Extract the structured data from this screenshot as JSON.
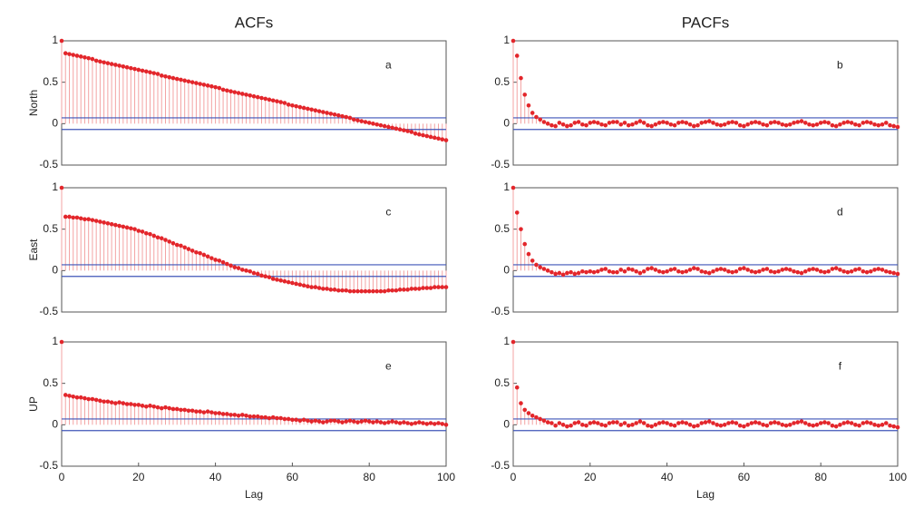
{
  "column_titles": [
    "ACFs",
    "PACFs"
  ],
  "chart_data": [
    {
      "type": "stem",
      "ylabel": "North",
      "annotation": "a",
      "xlim": [
        0,
        100
      ],
      "ylim": [
        -0.5,
        1
      ],
      "yticks": [
        -0.5,
        0,
        0.5,
        1
      ],
      "confidence_bounds": [
        -0.07,
        0.07
      ],
      "color": "#e3262b",
      "stem_color": "#f3a3a3",
      "bound_color": "#3f54b8",
      "x": [
        0,
        1,
        2,
        3,
        4,
        5,
        6,
        7,
        8,
        9,
        10,
        11,
        12,
        13,
        14,
        15,
        16,
        17,
        18,
        19,
        20,
        21,
        22,
        23,
        24,
        25,
        26,
        27,
        28,
        29,
        30,
        31,
        32,
        33,
        34,
        35,
        36,
        37,
        38,
        39,
        40,
        41,
        42,
        43,
        44,
        45,
        46,
        47,
        48,
        49,
        50,
        51,
        52,
        53,
        54,
        55,
        56,
        57,
        58,
        59,
        60,
        61,
        62,
        63,
        64,
        65,
        66,
        67,
        68,
        69,
        70,
        71,
        72,
        73,
        74,
        75,
        76,
        77,
        78,
        79,
        80,
        81,
        82,
        83,
        84,
        85,
        86,
        87,
        88,
        89,
        90,
        91,
        92,
        93,
        94,
        95,
        96,
        97,
        98,
        99,
        100
      ],
      "values": [
        1,
        0.85,
        0.84,
        0.83,
        0.82,
        0.81,
        0.8,
        0.79,
        0.78,
        0.76,
        0.75,
        0.74,
        0.73,
        0.72,
        0.71,
        0.7,
        0.69,
        0.68,
        0.67,
        0.66,
        0.65,
        0.64,
        0.63,
        0.62,
        0.61,
        0.6,
        0.58,
        0.57,
        0.56,
        0.55,
        0.54,
        0.53,
        0.52,
        0.51,
        0.5,
        0.49,
        0.48,
        0.47,
        0.46,
        0.45,
        0.44,
        0.43,
        0.41,
        0.4,
        0.39,
        0.38,
        0.37,
        0.36,
        0.35,
        0.34,
        0.33,
        0.32,
        0.31,
        0.3,
        0.29,
        0.28,
        0.27,
        0.26,
        0.25,
        0.23,
        0.22,
        0.21,
        0.2,
        0.19,
        0.18,
        0.17,
        0.16,
        0.15,
        0.14,
        0.13,
        0.12,
        0.11,
        0.1,
        0.09,
        0.08,
        0.07,
        0.05,
        0.04,
        0.03,
        0.02,
        0.01,
        0,
        -0.01,
        -0.02,
        -0.03,
        -0.04,
        -0.05,
        -0.06,
        -0.07,
        -0.08,
        -0.09,
        -0.1,
        -0.12,
        -0.13,
        -0.14,
        -0.15,
        -0.16,
        -0.17,
        -0.18,
        -0.19,
        -0.2
      ]
    },
    {
      "type": "stem",
      "annotation": "b",
      "xlim": [
        0,
        100
      ],
      "ylim": [
        -0.5,
        1
      ],
      "yticks": [
        -0.5,
        0,
        0.5,
        1
      ],
      "confidence_bounds": [
        -0.07,
        0.07
      ],
      "color": "#e3262b",
      "stem_color": "#f3a3a3",
      "bound_color": "#3f54b8",
      "x": [
        0,
        1,
        2,
        3,
        4,
        5,
        6,
        7,
        8,
        9,
        10,
        11,
        12,
        13,
        14,
        15,
        16,
        17,
        18,
        19,
        20,
        21,
        22,
        23,
        24,
        25,
        26,
        27,
        28,
        29,
        30,
        31,
        32,
        33,
        34,
        35,
        36,
        37,
        38,
        39,
        40,
        41,
        42,
        43,
        44,
        45,
        46,
        47,
        48,
        49,
        50,
        51,
        52,
        53,
        54,
        55,
        56,
        57,
        58,
        59,
        60,
        61,
        62,
        63,
        64,
        65,
        66,
        67,
        68,
        69,
        70,
        71,
        72,
        73,
        74,
        75,
        76,
        77,
        78,
        79,
        80,
        81,
        82,
        83,
        84,
        85,
        86,
        87,
        88,
        89,
        90,
        91,
        92,
        93,
        94,
        95,
        96,
        97,
        98,
        99,
        100
      ],
      "values": [
        1,
        0.82,
        0.55,
        0.35,
        0.22,
        0.13,
        0.08,
        0.05,
        0.02,
        0,
        -0.02,
        -0.03,
        0.01,
        -0.01,
        -0.03,
        -0.02,
        0.01,
        0.02,
        -0.01,
        -0.02,
        0.01,
        0.02,
        0.01,
        -0.01,
        -0.02,
        0.01,
        0.02,
        0.02,
        -0.01,
        0.01,
        -0.02,
        -0.01,
        0.01,
        0.03,
        0.01,
        -0.02,
        -0.03,
        -0.01,
        0.01,
        0.02,
        0.01,
        -0.01,
        -0.02,
        0.01,
        0.02,
        0.01,
        -0.01,
        -0.03,
        -0.02,
        0.01,
        0.02,
        0.03,
        0.01,
        -0.01,
        -0.02,
        -0.01,
        0.01,
        0.02,
        0.01,
        -0.02,
        -0.03,
        -0.01,
        0.01,
        0.02,
        0.01,
        -0.01,
        -0.02,
        0.01,
        0.02,
        0.01,
        -0.01,
        -0.02,
        -0.01,
        0.01,
        0.02,
        0.03,
        0.01,
        -0.01,
        -0.02,
        -0.01,
        0.01,
        0.02,
        0.01,
        -0.02,
        -0.03,
        -0.01,
        0.01,
        0.02,
        0.01,
        -0.01,
        -0.02,
        0.01,
        0.02,
        0.01,
        -0.01,
        -0.02,
        -0.01,
        0.01,
        -0.02,
        -0.03,
        -0.04
      ]
    },
    {
      "type": "stem",
      "ylabel": "East",
      "annotation": "c",
      "xlim": [
        0,
        100
      ],
      "ylim": [
        -0.5,
        1
      ],
      "yticks": [
        -0.5,
        0,
        0.5,
        1
      ],
      "confidence_bounds": [
        -0.07,
        0.07
      ],
      "color": "#e3262b",
      "stem_color": "#f3a3a3",
      "bound_color": "#3f54b8",
      "x": [
        0,
        1,
        2,
        3,
        4,
        5,
        6,
        7,
        8,
        9,
        10,
        11,
        12,
        13,
        14,
        15,
        16,
        17,
        18,
        19,
        20,
        21,
        22,
        23,
        24,
        25,
        26,
        27,
        28,
        29,
        30,
        31,
        32,
        33,
        34,
        35,
        36,
        37,
        38,
        39,
        40,
        41,
        42,
        43,
        44,
        45,
        46,
        47,
        48,
        49,
        50,
        51,
        52,
        53,
        54,
        55,
        56,
        57,
        58,
        59,
        60,
        61,
        62,
        63,
        64,
        65,
        66,
        67,
        68,
        69,
        70,
        71,
        72,
        73,
        74,
        75,
        76,
        77,
        78,
        79,
        80,
        81,
        82,
        83,
        84,
        85,
        86,
        87,
        88,
        89,
        90,
        91,
        92,
        93,
        94,
        95,
        96,
        97,
        98,
        99,
        100
      ],
      "values": [
        1,
        0.65,
        0.65,
        0.64,
        0.64,
        0.63,
        0.62,
        0.62,
        0.61,
        0.6,
        0.59,
        0.58,
        0.57,
        0.56,
        0.55,
        0.54,
        0.53,
        0.52,
        0.51,
        0.5,
        0.48,
        0.47,
        0.45,
        0.44,
        0.42,
        0.4,
        0.39,
        0.37,
        0.35,
        0.33,
        0.31,
        0.3,
        0.28,
        0.26,
        0.24,
        0.22,
        0.21,
        0.19,
        0.17,
        0.15,
        0.13,
        0.12,
        0.1,
        0.08,
        0.06,
        0.04,
        0.03,
        0.01,
        0,
        -0.01,
        -0.03,
        -0.04,
        -0.06,
        -0.07,
        -0.08,
        -0.1,
        -0.11,
        -0.12,
        -0.13,
        -0.14,
        -0.15,
        -0.16,
        -0.17,
        -0.18,
        -0.19,
        -0.2,
        -0.2,
        -0.21,
        -0.22,
        -0.22,
        -0.23,
        -0.23,
        -0.24,
        -0.24,
        -0.24,
        -0.25,
        -0.25,
        -0.25,
        -0.25,
        -0.25,
        -0.25,
        -0.25,
        -0.25,
        -0.25,
        -0.25,
        -0.24,
        -0.24,
        -0.24,
        -0.23,
        -0.23,
        -0.23,
        -0.22,
        -0.22,
        -0.22,
        -0.21,
        -0.21,
        -0.21,
        -0.2,
        -0.2,
        -0.2,
        -0.2
      ]
    },
    {
      "type": "stem",
      "annotation": "d",
      "xlim": [
        0,
        100
      ],
      "ylim": [
        -0.5,
        1
      ],
      "yticks": [
        -0.5,
        0,
        0.5,
        1
      ],
      "confidence_bounds": [
        -0.07,
        0.07
      ],
      "color": "#e3262b",
      "stem_color": "#f3a3a3",
      "bound_color": "#3f54b8",
      "x": [
        0,
        1,
        2,
        3,
        4,
        5,
        6,
        7,
        8,
        9,
        10,
        11,
        12,
        13,
        14,
        15,
        16,
        17,
        18,
        19,
        20,
        21,
        22,
        23,
        24,
        25,
        26,
        27,
        28,
        29,
        30,
        31,
        32,
        33,
        34,
        35,
        36,
        37,
        38,
        39,
        40,
        41,
        42,
        43,
        44,
        45,
        46,
        47,
        48,
        49,
        50,
        51,
        52,
        53,
        54,
        55,
        56,
        57,
        58,
        59,
        60,
        61,
        62,
        63,
        64,
        65,
        66,
        67,
        68,
        69,
        70,
        71,
        72,
        73,
        74,
        75,
        76,
        77,
        78,
        79,
        80,
        81,
        82,
        83,
        84,
        85,
        86,
        87,
        88,
        89,
        90,
        91,
        92,
        93,
        94,
        95,
        96,
        97,
        98,
        99,
        100
      ],
      "values": [
        1,
        0.7,
        0.5,
        0.32,
        0.2,
        0.12,
        0.07,
        0.04,
        0.02,
        0,
        -0.02,
        -0.04,
        -0.03,
        -0.05,
        -0.03,
        -0.02,
        -0.04,
        -0.03,
        -0.01,
        -0.02,
        -0.01,
        -0.02,
        -0.01,
        0.01,
        0.02,
        -0.01,
        -0.02,
        -0.02,
        0.01,
        -0.01,
        0.02,
        0.01,
        -0.01,
        -0.03,
        -0.01,
        0.02,
        0.03,
        0.01,
        -0.01,
        -0.02,
        -0.01,
        0.01,
        0.02,
        -0.01,
        -0.02,
        -0.01,
        0.01,
        0.03,
        0.02,
        -0.01,
        -0.02,
        -0.03,
        -0.01,
        0.01,
        0.02,
        0.01,
        -0.01,
        -0.02,
        -0.01,
        0.02,
        0.03,
        0.01,
        -0.01,
        -0.02,
        -0.01,
        0.01,
        0.02,
        -0.01,
        -0.02,
        -0.01,
        0.01,
        0.02,
        0.01,
        -0.01,
        -0.02,
        -0.03,
        -0.01,
        0.01,
        0.02,
        0.01,
        -0.01,
        -0.02,
        -0.01,
        0.02,
        0.03,
        0.01,
        -0.01,
        -0.02,
        -0.01,
        0.01,
        0.02,
        -0.01,
        -0.02,
        -0.01,
        0.01,
        0.02,
        0.01,
        -0.01,
        -0.02,
        -0.03,
        -0.04
      ]
    },
    {
      "type": "stem",
      "ylabel": "UP",
      "xlabel": "Lag",
      "annotation": "e",
      "xlim": [
        0,
        100
      ],
      "ylim": [
        -0.5,
        1
      ],
      "xticks": [
        0,
        20,
        40,
        60,
        80,
        100
      ],
      "yticks": [
        -0.5,
        0,
        0.5,
        1
      ],
      "confidence_bounds": [
        -0.07,
        0.07
      ],
      "color": "#e3262b",
      "stem_color": "#f3a3a3",
      "bound_color": "#3f54b8",
      "x": [
        0,
        1,
        2,
        3,
        4,
        5,
        6,
        7,
        8,
        9,
        10,
        11,
        12,
        13,
        14,
        15,
        16,
        17,
        18,
        19,
        20,
        21,
        22,
        23,
        24,
        25,
        26,
        27,
        28,
        29,
        30,
        31,
        32,
        33,
        34,
        35,
        36,
        37,
        38,
        39,
        40,
        41,
        42,
        43,
        44,
        45,
        46,
        47,
        48,
        49,
        50,
        51,
        52,
        53,
        54,
        55,
        56,
        57,
        58,
        59,
        60,
        61,
        62,
        63,
        64,
        65,
        66,
        67,
        68,
        69,
        70,
        71,
        72,
        73,
        74,
        75,
        76,
        77,
        78,
        79,
        80,
        81,
        82,
        83,
        84,
        85,
        86,
        87,
        88,
        89,
        90,
        91,
        92,
        93,
        94,
        95,
        96,
        97,
        98,
        99,
        100
      ],
      "values": [
        1,
        0.36,
        0.35,
        0.34,
        0.33,
        0.33,
        0.32,
        0.31,
        0.31,
        0.3,
        0.29,
        0.28,
        0.28,
        0.27,
        0.26,
        0.27,
        0.26,
        0.25,
        0.25,
        0.24,
        0.24,
        0.23,
        0.22,
        0.23,
        0.22,
        0.21,
        0.2,
        0.21,
        0.2,
        0.19,
        0.19,
        0.18,
        0.18,
        0.17,
        0.17,
        0.16,
        0.16,
        0.15,
        0.16,
        0.15,
        0.14,
        0.14,
        0.13,
        0.13,
        0.12,
        0.12,
        0.11,
        0.12,
        0.11,
        0.1,
        0.1,
        0.1,
        0.09,
        0.09,
        0.08,
        0.09,
        0.08,
        0.08,
        0.07,
        0.07,
        0.06,
        0.06,
        0.05,
        0.06,
        0.05,
        0.04,
        0.05,
        0.04,
        0.03,
        0.04,
        0.05,
        0.05,
        0.04,
        0.03,
        0.04,
        0.05,
        0.04,
        0.03,
        0.04,
        0.05,
        0.04,
        0.03,
        0.04,
        0.03,
        0.02,
        0.03,
        0.04,
        0.03,
        0.02,
        0.03,
        0.02,
        0.01,
        0.02,
        0.03,
        0.02,
        0.01,
        0.02,
        0.01,
        0.02,
        0.01,
        0
      ]
    },
    {
      "type": "stem",
      "xlabel": "Lag",
      "annotation": "f",
      "xlim": [
        0,
        100
      ],
      "ylim": [
        -0.5,
        1
      ],
      "xticks": [
        0,
        20,
        40,
        60,
        80,
        100
      ],
      "yticks": [
        -0.5,
        0,
        0.5,
        1
      ],
      "confidence_bounds": [
        -0.07,
        0.07
      ],
      "color": "#e3262b",
      "stem_color": "#f3a3a3",
      "bound_color": "#3f54b8",
      "x": [
        0,
        1,
        2,
        3,
        4,
        5,
        6,
        7,
        8,
        9,
        10,
        11,
        12,
        13,
        14,
        15,
        16,
        17,
        18,
        19,
        20,
        21,
        22,
        23,
        24,
        25,
        26,
        27,
        28,
        29,
        30,
        31,
        32,
        33,
        34,
        35,
        36,
        37,
        38,
        39,
        40,
        41,
        42,
        43,
        44,
        45,
        46,
        47,
        48,
        49,
        50,
        51,
        52,
        53,
        54,
        55,
        56,
        57,
        58,
        59,
        60,
        61,
        62,
        63,
        64,
        65,
        66,
        67,
        68,
        69,
        70,
        71,
        72,
        73,
        74,
        75,
        76,
        77,
        78,
        79,
        80,
        81,
        82,
        83,
        84,
        85,
        86,
        87,
        88,
        89,
        90,
        91,
        92,
        93,
        94,
        95,
        96,
        97,
        98,
        99,
        100
      ],
      "values": [
        1,
        0.45,
        0.26,
        0.18,
        0.14,
        0.11,
        0.09,
        0.07,
        0.05,
        0.03,
        0.02,
        -0.01,
        0.02,
        0,
        -0.02,
        -0.01,
        0.02,
        0.03,
        0,
        -0.01,
        0.02,
        0.03,
        0.02,
        0,
        -0.01,
        0.02,
        0.03,
        0.03,
        0,
        0.02,
        -0.01,
        0,
        0.02,
        0.04,
        0.02,
        -0.01,
        -0.02,
        0,
        0.02,
        0.03,
        0.02,
        0,
        -0.01,
        0.02,
        0.03,
        0.02,
        0,
        -0.02,
        -0.01,
        0.02,
        0.03,
        0.04,
        0.02,
        0,
        -0.01,
        0,
        0.02,
        0.03,
        0.02,
        -0.01,
        -0.02,
        0,
        0.02,
        0.03,
        0.02,
        0,
        -0.01,
        0.02,
        0.03,
        0.02,
        0,
        -0.01,
        0,
        0.02,
        0.03,
        0.04,
        0.02,
        0,
        -0.01,
        0,
        0.02,
        0.03,
        0.02,
        -0.01,
        -0.02,
        0,
        0.02,
        0.03,
        0.02,
        0,
        -0.01,
        0.02,
        0.03,
        0.02,
        0,
        -0.01,
        0,
        0.02,
        -0.01,
        -0.02,
        -0.03
      ]
    }
  ]
}
